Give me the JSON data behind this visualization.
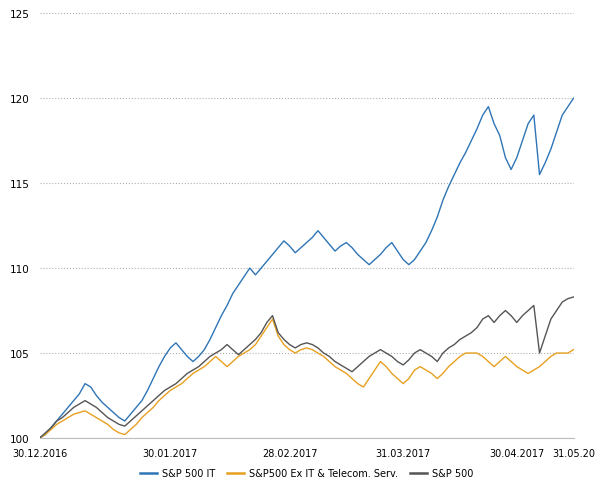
{
  "ylim": [
    100,
    125
  ],
  "yticks": [
    100,
    105,
    110,
    115,
    120,
    125
  ],
  "xtick_labels": [
    "30.12.2016",
    "30.01.2017",
    "28.02.2017",
    "31.03.2017",
    "30.04.2017",
    "31.05.20"
  ],
  "color_sp500_it": "#2e75b6",
  "color_ex_it": "#e8a020",
  "color_sp500": "#555555",
  "legend_labels": [
    "S&P 500 IT",
    "S&P500 Ex IT & Telecom. Serv.",
    "S&P 500"
  ],
  "background_color": "#ffffff",
  "grid_color": "#b0b0b0",
  "line_width": 1.0,
  "sp500_it": [
    100.0,
    100.2,
    100.6,
    101.0,
    101.4,
    101.8,
    102.2,
    102.6,
    103.2,
    103.0,
    102.5,
    102.1,
    101.8,
    101.5,
    101.2,
    101.0,
    101.4,
    101.8,
    102.2,
    102.8,
    103.5,
    104.2,
    104.8,
    105.3,
    105.6,
    105.2,
    104.8,
    104.5,
    104.8,
    105.2,
    105.8,
    106.5,
    107.2,
    107.8,
    108.5,
    109.0,
    109.5,
    110.0,
    109.6,
    110.0,
    110.4,
    110.8,
    111.2,
    111.6,
    111.3,
    110.9,
    111.2,
    111.5,
    111.8,
    112.2,
    111.8,
    111.4,
    111.0,
    111.3,
    111.5,
    111.2,
    110.8,
    110.5,
    110.2,
    110.5,
    110.8,
    111.2,
    111.5,
    111.0,
    110.5,
    110.2,
    110.5,
    111.0,
    111.5,
    112.2,
    113.0,
    114.0,
    114.8,
    115.5,
    116.2,
    116.8,
    117.5,
    118.2,
    119.0,
    119.5,
    118.5,
    117.8,
    116.5,
    115.8,
    116.5,
    117.5,
    118.5,
    119.0,
    115.5,
    116.2,
    117.0,
    118.0,
    119.0,
    119.5,
    120.0
  ],
  "ex_it": [
    100.0,
    100.2,
    100.5,
    100.8,
    101.0,
    101.2,
    101.4,
    101.5,
    101.6,
    101.4,
    101.2,
    101.0,
    100.8,
    100.5,
    100.3,
    100.2,
    100.5,
    100.8,
    101.2,
    101.5,
    101.8,
    102.2,
    102.5,
    102.8,
    103.0,
    103.2,
    103.5,
    103.8,
    104.0,
    104.2,
    104.5,
    104.8,
    104.5,
    104.2,
    104.5,
    104.8,
    105.0,
    105.2,
    105.5,
    106.0,
    106.5,
    107.0,
    106.0,
    105.5,
    105.2,
    105.0,
    105.2,
    105.3,
    105.2,
    105.0,
    104.8,
    104.5,
    104.2,
    104.0,
    103.8,
    103.5,
    103.2,
    103.0,
    103.5,
    104.0,
    104.5,
    104.2,
    103.8,
    103.5,
    103.2,
    103.5,
    104.0,
    104.2,
    104.0,
    103.8,
    103.5,
    103.8,
    104.2,
    104.5,
    104.8,
    105.0,
    105.0,
    105.0,
    104.8,
    104.5,
    104.2,
    104.5,
    104.8,
    104.5,
    104.2,
    104.0,
    103.8,
    104.0,
    104.2,
    104.5,
    104.8,
    105.0,
    105.0,
    105.0,
    105.2
  ],
  "sp500": [
    100.0,
    100.3,
    100.6,
    101.0,
    101.2,
    101.5,
    101.8,
    102.0,
    102.2,
    102.0,
    101.8,
    101.5,
    101.2,
    101.0,
    100.8,
    100.7,
    101.0,
    101.3,
    101.6,
    101.9,
    102.2,
    102.5,
    102.8,
    103.0,
    103.2,
    103.5,
    103.8,
    104.0,
    104.2,
    104.5,
    104.8,
    105.0,
    105.2,
    105.5,
    105.2,
    104.9,
    105.2,
    105.5,
    105.8,
    106.2,
    106.8,
    107.2,
    106.2,
    105.8,
    105.5,
    105.3,
    105.5,
    105.6,
    105.5,
    105.3,
    105.0,
    104.8,
    104.5,
    104.3,
    104.1,
    103.9,
    104.2,
    104.5,
    104.8,
    105.0,
    105.2,
    105.0,
    104.8,
    104.5,
    104.3,
    104.6,
    105.0,
    105.2,
    105.0,
    104.8,
    104.5,
    105.0,
    105.3,
    105.5,
    105.8,
    106.0,
    106.2,
    106.5,
    107.0,
    107.2,
    106.8,
    107.2,
    107.5,
    107.2,
    106.8,
    107.2,
    107.5,
    107.8,
    105.0,
    106.0,
    107.0,
    107.5,
    108.0,
    108.2,
    108.3
  ]
}
